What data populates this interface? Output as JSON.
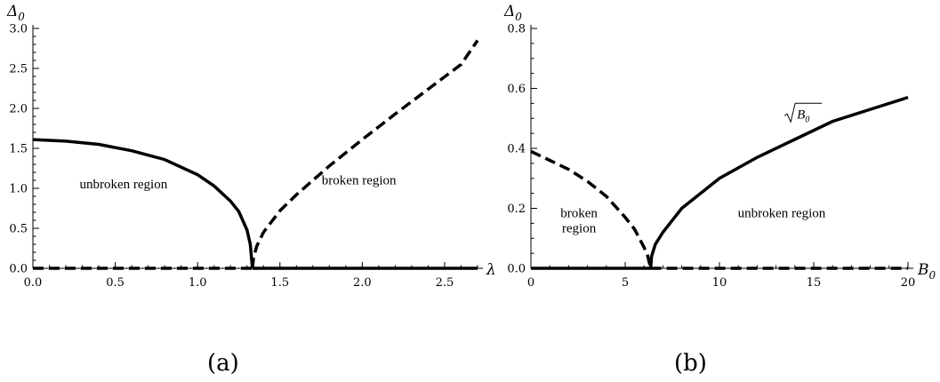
{
  "chart_data": [
    {
      "type": "line",
      "panel": "(a)",
      "xlabel": "λ",
      "ylabel": "Δ",
      "ylabel_sub": "0",
      "xlim": [
        0,
        2.7
      ],
      "ylim": [
        0,
        3.0
      ],
      "xticks_major": [
        "0.0",
        "0.5",
        "1.0",
        "1.5",
        "2.0",
        "2.5"
      ],
      "yticks_major": [
        "0.0",
        "0.5",
        "1.0",
        "1.5",
        "2.0",
        "2.5",
        "3.0"
      ],
      "critical_x": 1.333,
      "series": [
        {
          "style": "solid",
          "x": [
            0,
            0.2,
            0.4,
            0.6,
            0.8,
            1.0,
            1.1,
            1.2,
            1.25,
            1.3,
            1.32,
            1.333
          ],
          "y": [
            1.61,
            1.59,
            1.55,
            1.47,
            1.36,
            1.17,
            1.03,
            0.84,
            0.71,
            0.48,
            0.3,
            0.0
          ]
        },
        {
          "style": "dashed",
          "x": [
            1.333,
            1.34,
            1.36,
            1.4,
            1.5,
            1.6,
            1.8,
            2.0,
            2.2,
            2.4,
            2.6,
            2.7
          ],
          "y": [
            0.0,
            0.14,
            0.28,
            0.45,
            0.72,
            0.92,
            1.28,
            1.61,
            1.93,
            2.24,
            2.55,
            2.85
          ]
        },
        {
          "style": "solid",
          "x": [
            1.333,
            2.7
          ],
          "y": [
            0,
            0
          ]
        },
        {
          "style": "dashed",
          "x": [
            0,
            1.333
          ],
          "y": [
            0,
            0
          ]
        }
      ],
      "annotations": [
        {
          "text": "unbroken region",
          "x": 0.55,
          "y": 1.0
        },
        {
          "text": "broken region",
          "x": 1.98,
          "y": 1.05
        }
      ]
    },
    {
      "type": "line",
      "panel": "(b)",
      "xlabel": "B",
      "xlabel_sub": "0",
      "ylabel": "Δ",
      "ylabel_sub": "0",
      "xlim": [
        0,
        20
      ],
      "ylim": [
        0,
        0.8
      ],
      "xticks_major": [
        "0",
        "5",
        "10",
        "15",
        "20"
      ],
      "yticks_major": [
        "0.0",
        "0.2",
        "0.4",
        "0.6",
        "0.8"
      ],
      "critical_x": 6.35,
      "series": [
        {
          "style": "dashed",
          "x": [
            0,
            1,
            2,
            3,
            4,
            5,
            5.5,
            6,
            6.2,
            6.35
          ],
          "y": [
            0.39,
            0.36,
            0.33,
            0.29,
            0.24,
            0.17,
            0.13,
            0.07,
            0.04,
            0.0
          ]
        },
        {
          "style": "solid",
          "x": [
            6.35,
            6.4,
            6.6,
            7,
            8,
            9,
            10,
            12,
            14,
            16,
            18,
            20
          ],
          "y": [
            0.0,
            0.04,
            0.08,
            0.12,
            0.2,
            0.25,
            0.3,
            0.37,
            0.43,
            0.49,
            0.53,
            0.57
          ]
        },
        {
          "style": "solid",
          "x": [
            0,
            6.35
          ],
          "y": [
            0,
            0
          ]
        },
        {
          "style": "dashed",
          "x": [
            6.35,
            20
          ],
          "y": [
            0,
            0
          ]
        }
      ],
      "annotations": [
        {
          "text": "broken",
          "x": 2.55,
          "y": 0.17
        },
        {
          "text": "region",
          "x": 2.55,
          "y": 0.12
        },
        {
          "text": "unbroken region",
          "x": 13.3,
          "y": 0.17
        },
        {
          "text": "√B₀",
          "x": 14.3,
          "y": 0.5
        }
      ]
    }
  ],
  "captions": {
    "a": "(a)",
    "b": "(b)"
  },
  "sqrt_label": {
    "radicand": "B",
    "sub": "0"
  }
}
